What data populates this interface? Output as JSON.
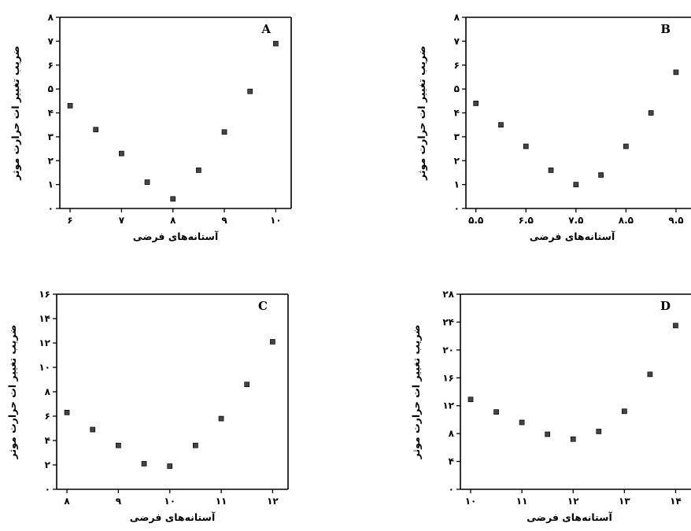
{
  "chart_data": [
    {
      "type": "scatter",
      "panel": "A",
      "xlabel": "آستانه‌های فرضی",
      "ylabel": "ضریب تغییر ات حرارت موثر",
      "xlim": [
        5.8,
        10.3
      ],
      "ylim": [
        0,
        8
      ],
      "xticks": [
        6,
        7,
        8,
        9,
        10
      ],
      "xtick_labels": [
        "۶",
        "۷",
        "۸",
        "۹",
        "۱۰"
      ],
      "yticks": [
        0,
        1,
        2,
        3,
        4,
        5,
        6,
        7,
        8
      ],
      "ytick_labels": [
        "۰",
        "۱",
        "۲",
        "۳",
        "۴",
        "۵",
        "۶",
        "۷",
        "۸"
      ],
      "x": [
        6.0,
        6.5,
        7.0,
        7.5,
        8.0,
        8.5,
        9.0,
        9.5,
        10.0
      ],
      "y": [
        4.3,
        3.3,
        2.3,
        1.1,
        0.4,
        1.6,
        3.2,
        4.9,
        6.9
      ]
    },
    {
      "type": "scatter",
      "panel": "B",
      "xlabel": "آستانه‌های فرضی",
      "ylabel": "ضریب تغییر ات حرارت موثر",
      "xlim": [
        5.3,
        9.8
      ],
      "ylim": [
        0,
        8
      ],
      "xticks": [
        5.5,
        6.5,
        7.5,
        8.5,
        9.5
      ],
      "xtick_labels": [
        "۵.۵",
        "۶.۵",
        "۷.۵",
        "۸.۵",
        "۹.۵"
      ],
      "yticks": [
        0,
        1,
        2,
        3,
        4,
        5,
        6,
        7,
        8
      ],
      "ytick_labels": [
        "۰",
        "۱",
        "۲",
        "۳",
        "۴",
        "۵",
        "۶",
        "۷",
        "۸"
      ],
      "x": [
        5.5,
        6.0,
        6.5,
        7.0,
        7.5,
        8.0,
        8.5,
        9.0,
        9.5
      ],
      "y": [
        4.4,
        3.5,
        2.6,
        1.6,
        1.0,
        1.4,
        2.6,
        4.0,
        5.7
      ]
    },
    {
      "type": "scatter",
      "panel": "C",
      "xlabel": "آستانه‌های فرضی",
      "ylabel": "ضریب تغییر ات حرارت موثر",
      "xlim": [
        7.8,
        12.3
      ],
      "ylim": [
        0,
        16
      ],
      "xticks": [
        8,
        9,
        10,
        11,
        12
      ],
      "xtick_labels": [
        "۸",
        "۹",
        "۱۰",
        "۱۱",
        "۱۲"
      ],
      "yticks": [
        0,
        2,
        4,
        6,
        8,
        10,
        12,
        14,
        16
      ],
      "ytick_labels": [
        "۰",
        "۲",
        "۴",
        "۶",
        "۸",
        "۱۰",
        "۱۲",
        "۱۴",
        "۱۶"
      ],
      "x": [
        8.0,
        8.5,
        9.0,
        9.5,
        10.0,
        10.5,
        11.0,
        11.5,
        12.0
      ],
      "y": [
        6.3,
        4.9,
        3.6,
        2.1,
        1.9,
        3.6,
        5.8,
        8.6,
        12.1
      ]
    },
    {
      "type": "scatter",
      "panel": "D",
      "xlabel": "آستانه‌های فرضی",
      "ylabel": "ضریب تغییر ات حرارت موثر",
      "xlim": [
        9.8,
        14.3
      ],
      "ylim": [
        0,
        28
      ],
      "xticks": [
        10,
        11,
        12,
        13,
        14
      ],
      "xtick_labels": [
        "۱۰",
        "۱۱",
        "۱۲",
        "۱۳",
        "۱۴"
      ],
      "yticks": [
        0,
        4,
        8,
        12,
        16,
        20,
        24,
        28
      ],
      "ytick_labels": [
        "۰",
        "۴",
        "۸",
        "۱۲",
        "۱۶",
        "۲۰",
        "۲۴",
        "۲۸"
      ],
      "x": [
        10.0,
        10.5,
        11.0,
        11.5,
        12.0,
        12.5,
        13.0,
        13.5,
        14.0
      ],
      "y": [
        12.9,
        11.1,
        9.6,
        7.9,
        7.2,
        8.3,
        11.2,
        16.5,
        23.5
      ]
    }
  ]
}
